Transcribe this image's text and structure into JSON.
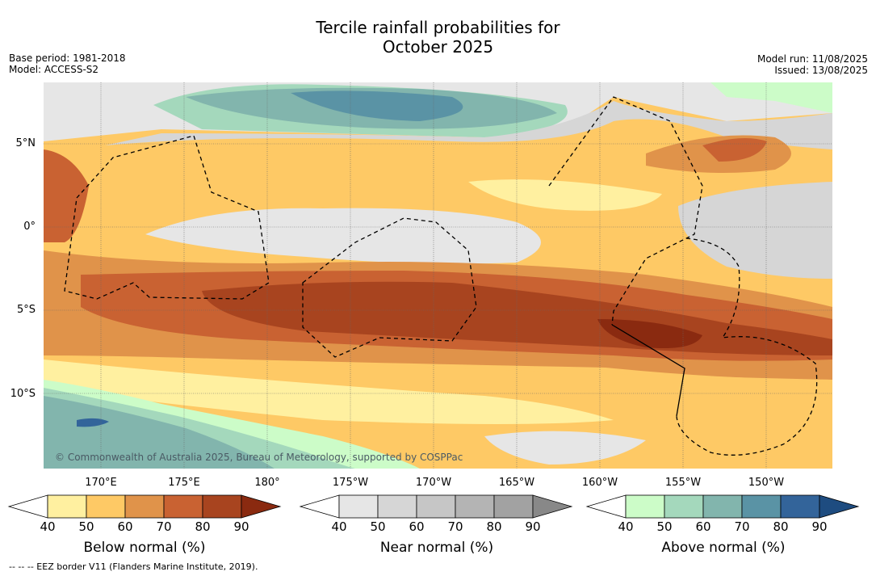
{
  "title_line1": "Tercile rainfall probabilities for",
  "title_line2": "October 2025",
  "meta_left": {
    "base_period": "Base period: 1981-2018",
    "model": "Model: ACCESS-S2"
  },
  "meta_right": {
    "model_run": "Model run: 11/08/2025",
    "issued": "Issued: 13/08/2025"
  },
  "lat_labels": [
    "5°N",
    "0°",
    "5°S",
    "10°S"
  ],
  "lon_labels": [
    "170°E",
    "175°E",
    "180°",
    "175°W",
    "170°W",
    "165°W",
    "160°W",
    "155°W",
    "150°W"
  ],
  "copyright": "© Commonwealth of Australia 2025, Bureau of Meteorology, supported by COSPPac",
  "colorbars": [
    {
      "title": "Below normal (%)",
      "ticks": [
        "40",
        "50",
        "60",
        "70",
        "80",
        "90"
      ],
      "colors": [
        "#ffffff",
        "#fff0a0",
        "#fec965",
        "#e0934a",
        "#c96232",
        "#a8441f",
        "#8a2a10"
      ]
    },
    {
      "title": "Near normal (%)",
      "ticks": [
        "40",
        "50",
        "60",
        "70",
        "80",
        "90"
      ],
      "colors": [
        "#ffffff",
        "#e6e6e6",
        "#d6d6d6",
        "#c6c6c6",
        "#b4b4b4",
        "#a2a2a2",
        "#888888"
      ]
    },
    {
      "title": "Above normal (%)",
      "ticks": [
        "40",
        "50",
        "60",
        "70",
        "80",
        "90"
      ],
      "colors": [
        "#ffffff",
        "#ccfcc8",
        "#a4d8bc",
        "#82b5ad",
        "#5a93a5",
        "#33649a",
        "#1e4c80"
      ]
    }
  ],
  "footnote": "-- -- -- EEZ border V11 (Flanders Marine Institute, 2019)."
}
